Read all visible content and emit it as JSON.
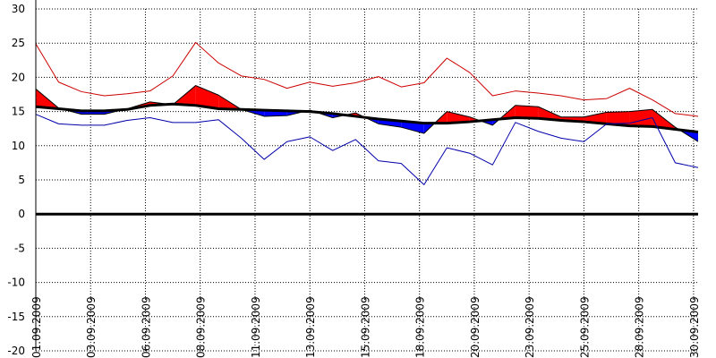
{
  "chart_data": {
    "type": "line",
    "title": "",
    "xlabel": "",
    "ylabel": "",
    "ylim": [
      -20,
      30
    ],
    "y_ticks": [
      30,
      25,
      20,
      15,
      10,
      5,
      0,
      -5,
      -10,
      -15,
      -20
    ],
    "y_tick_labels": [
      "30",
      "25",
      "20",
      "15",
      "10",
      "5",
      "0",
      "-5",
      "-10",
      "-15",
      "-20"
    ],
    "x_dates": [
      "01.09.2009",
      "02.09.2009",
      "03.09.2009",
      "04.09.2009",
      "05.09.2009",
      "06.09.2009",
      "07.09.2009",
      "08.09.2009",
      "09.09.2009",
      "10.09.2009",
      "11.09.2009",
      "12.09.2009",
      "13.09.2009",
      "14.09.2009",
      "15.09.2009",
      "16.09.2009",
      "17.09.2009",
      "18.09.2009",
      "19.09.2009",
      "20.09.2009",
      "21.09.2009",
      "22.09.2009",
      "23.09.2009",
      "24.09.2009",
      "25.09.2009",
      "26.09.2009",
      "27.09.2009",
      "28.09.2009",
      "29.09.2009",
      "30.09.2009"
    ],
    "x_tick_labels": [
      "01.09.2009",
      "03.09.2009",
      "06.09.2009",
      "08.09.2009",
      "11.09.2009",
      "13.09.2009",
      "15.09.2009",
      "18.09.2009",
      "20.09.2009",
      "23.09.2009",
      "25.09.2009",
      "28.09.2009",
      "30.09.2009"
    ],
    "x_tick_positions": [
      0,
      2.4,
      4.8,
      7.2,
      9.6,
      12,
      14.4,
      16.8,
      19.2,
      21.6,
      24,
      26.4,
      28.8
    ],
    "x_grid_positions": [
      0,
      2.4,
      4.8,
      7.2,
      9.6,
      12,
      14.4,
      16.8,
      19.2,
      21.6,
      24,
      26.4,
      28.8
    ],
    "grid": true,
    "zero_line": true,
    "series": [
      {
        "key": "max",
        "values": [
          24.9,
          19.3,
          17.9,
          17.3,
          17.6,
          18.0,
          20.2,
          25.1,
          22.1,
          20.2,
          19.7,
          18.4,
          19.3,
          18.7,
          19.2,
          20.1,
          18.6,
          19.2,
          22.8,
          20.7,
          17.3,
          18.0,
          17.7,
          17.3,
          16.7,
          16.9,
          18.4,
          16.7,
          14.7,
          14.3
        ],
        "color": "#cc0000"
      },
      {
        "key": "mean",
        "values": [
          18.3,
          15.5,
          14.6,
          14.6,
          15.4,
          16.4,
          16.0,
          18.8,
          17.4,
          15.3,
          14.3,
          14.4,
          15.2,
          14.1,
          14.8,
          13.2,
          12.7,
          11.8,
          15.0,
          14.2,
          13.0,
          15.9,
          15.7,
          14.2,
          14.2,
          14.9,
          15.0,
          15.3,
          12.7,
          10.6
        ],
        "color": "#000000"
      },
      {
        "key": "normal",
        "values": [
          15.7,
          15.4,
          15.1,
          15.1,
          15.3,
          15.9,
          16.1,
          15.9,
          15.4,
          15.3,
          15.2,
          15.1,
          15.0,
          14.7,
          14.3,
          13.9,
          13.6,
          13.3,
          13.3,
          13.5,
          13.8,
          14.1,
          14.0,
          13.7,
          13.5,
          13.2,
          12.9,
          12.8,
          12.4,
          12.0
        ],
        "color": "#000000"
      },
      {
        "key": "min",
        "values": [
          14.6,
          13.2,
          13.0,
          13.0,
          13.7,
          14.1,
          13.4,
          13.4,
          13.8,
          11.1,
          8.0,
          10.6,
          11.3,
          9.3,
          10.9,
          7.8,
          7.4,
          4.3,
          9.7,
          8.9,
          7.2,
          13.4,
          12.1,
          11.1,
          10.6,
          13.2,
          13.3,
          14.1,
          7.5,
          6.8
        ],
        "color": "#0000aa"
      }
    ],
    "fill_above_color": "#ff0000",
    "fill_below_color": "#0000ff"
  }
}
